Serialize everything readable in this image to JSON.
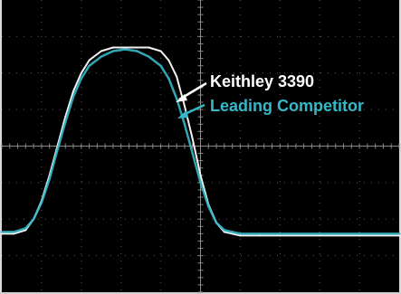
{
  "chart_data": {
    "type": "line",
    "title": "",
    "xlabel": "",
    "ylabel": "",
    "grid": true,
    "grid_divisions": {
      "x": 10,
      "y": 8
    },
    "xlim": [
      0,
      10
    ],
    "ylim": [
      -4,
      4
    ],
    "legend_placement": "top-right",
    "series": [
      {
        "name": "Keithley 3390",
        "color": "#ffffff",
        "x": [
          0,
          0.3,
          0.6,
          0.8,
          1.0,
          1.2,
          1.4,
          1.6,
          1.8,
          2.0,
          2.2,
          2.5,
          2.8,
          3.1,
          3.4,
          3.7,
          4.0,
          4.2,
          4.4,
          4.6,
          4.8,
          5.0,
          5.2,
          5.4,
          5.6,
          5.8,
          6.0,
          6.5,
          7.0,
          8.0,
          9.0,
          10.0
        ],
        "y": [
          -2.4,
          -2.4,
          -2.3,
          -2.0,
          -1.5,
          -0.8,
          0.0,
          0.8,
          1.5,
          2.0,
          2.35,
          2.6,
          2.7,
          2.7,
          2.7,
          2.7,
          2.6,
          2.35,
          1.9,
          1.1,
          0.2,
          -0.8,
          -1.6,
          -2.1,
          -2.35,
          -2.4,
          -2.45,
          -2.45,
          -2.45,
          -2.45,
          -2.45,
          -2.45
        ]
      },
      {
        "name": "Leading Competitor",
        "color": "#35b8c8",
        "x": [
          0,
          0.3,
          0.6,
          0.8,
          1.0,
          1.2,
          1.4,
          1.6,
          1.8,
          2.0,
          2.2,
          2.5,
          2.8,
          3.1,
          3.4,
          3.7,
          4.0,
          4.2,
          4.4,
          4.6,
          4.8,
          5.0,
          5.2,
          5.4,
          5.6,
          5.8,
          6.0,
          6.5,
          7.0,
          8.0,
          9.0,
          10.0
        ],
        "y": [
          -2.35,
          -2.35,
          -2.25,
          -2.0,
          -1.55,
          -0.9,
          -0.1,
          0.65,
          1.35,
          1.85,
          2.2,
          2.45,
          2.6,
          2.65,
          2.6,
          2.45,
          2.2,
          1.85,
          1.3,
          0.6,
          -0.2,
          -1.0,
          -1.65,
          -2.1,
          -2.3,
          -2.35,
          -2.4,
          -2.4,
          -2.4,
          -2.4,
          -2.4,
          -2.4
        ]
      }
    ]
  }
}
